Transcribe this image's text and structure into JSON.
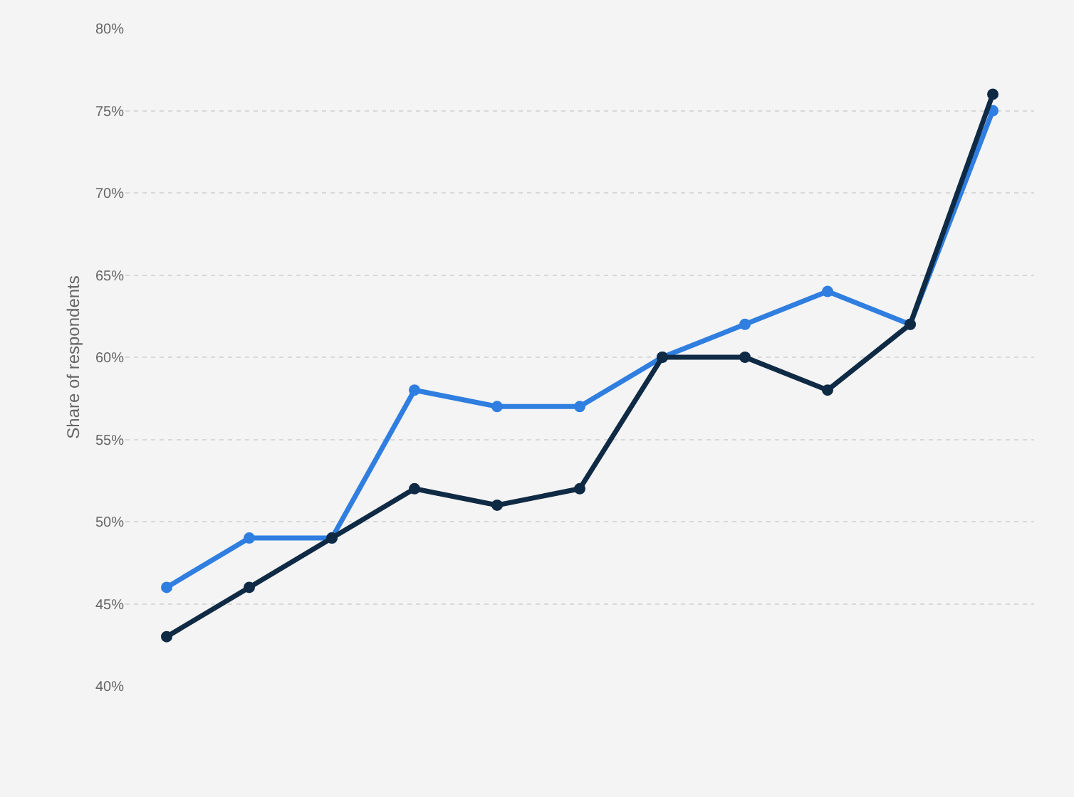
{
  "chart_data": {
    "type": "line",
    "ylabel": "Share of respondents",
    "categories": [
      null,
      null,
      null,
      null,
      null,
      null,
      null,
      null,
      null,
      null,
      null
    ],
    "series": [
      {
        "color": "#2f7ee0",
        "values": [
          46,
          49,
          49,
          58,
          57,
          57,
          60,
          62,
          64,
          62,
          75
        ]
      },
      {
        "color": "#0f2a44",
        "values": [
          43,
          46,
          49,
          52,
          51,
          52,
          60,
          60,
          58,
          62,
          76
        ]
      }
    ],
    "ylim": [
      40,
      80
    ],
    "yticks": [
      {
        "value": 40,
        "label": "40%"
      },
      {
        "value": 45,
        "label": "45%"
      },
      {
        "value": 50,
        "label": "50%"
      },
      {
        "value": 55,
        "label": "55%"
      },
      {
        "value": 60,
        "label": "60%"
      },
      {
        "value": 65,
        "label": "65%"
      },
      {
        "value": 70,
        "label": "70%"
      },
      {
        "value": 75,
        "label": "75%"
      },
      {
        "value": 80,
        "label": "80%"
      }
    ],
    "grid": "y",
    "marker": "circle",
    "line_style": "solid",
    "tick_labels": "y"
  }
}
